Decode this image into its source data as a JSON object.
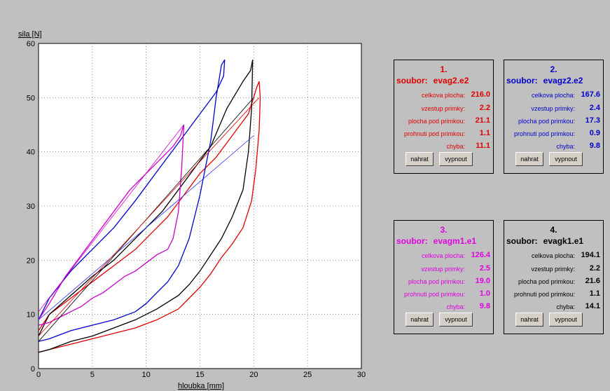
{
  "chart_data": {
    "type": "line",
    "title": "",
    "xlabel": "hloubka [mm]",
    "ylabel": "sila [N]",
    "xlim": [
      0,
      30
    ],
    "ylim": [
      0,
      60
    ],
    "xticks": [
      0,
      5,
      10,
      15,
      20,
      25,
      30
    ],
    "yticks": [
      0,
      10,
      20,
      30,
      40,
      50,
      60
    ],
    "grid": true,
    "series": [
      {
        "color": "#e00000",
        "x": [
          0,
          1,
          3,
          5,
          7,
          9,
          11,
          13,
          14,
          15,
          16,
          17,
          18,
          19,
          19.8,
          20.2,
          20.5,
          20.6,
          20.5,
          20.3,
          19.5,
          18,
          16.5,
          15,
          13.5,
          12,
          10.5,
          9,
          7,
          5,
          3,
          1,
          0
        ],
        "y": [
          3,
          3.5,
          4.5,
          5.5,
          6.5,
          7.5,
          9,
          11,
          13,
          15,
          17.5,
          20.5,
          23,
          26,
          31,
          37,
          44,
          50,
          53,
          52,
          47,
          43,
          39,
          36,
          32,
          28,
          25,
          22,
          19,
          16,
          13,
          10,
          7
        ]
      },
      {
        "color": "#000000",
        "x": [
          0,
          1,
          3,
          5,
          7,
          9,
          11,
          13,
          14,
          15,
          16,
          17,
          18,
          19,
          19.5,
          19.8,
          19.9,
          19.7,
          19,
          17.5,
          16,
          14.5,
          13,
          11.5,
          10,
          8.5,
          7,
          5,
          3,
          1,
          0
        ],
        "y": [
          3,
          3.5,
          5,
          6,
          7.5,
          9,
          11,
          13.5,
          15.5,
          18,
          21,
          24,
          28,
          33,
          40,
          48,
          57,
          55,
          53,
          48,
          41,
          37,
          33,
          29,
          26,
          23,
          20,
          17,
          13.5,
          10,
          6
        ]
      },
      {
        "color": "#0000cc",
        "x": [
          0,
          1,
          3,
          5,
          7,
          9,
          10,
          11,
          12,
          13,
          14,
          15,
          16,
          16.5,
          17,
          17.3,
          17.2,
          16.5,
          15,
          13.5,
          12,
          10.5,
          9,
          7,
          5,
          3,
          1,
          0
        ],
        "y": [
          5,
          5.5,
          7,
          8,
          9,
          10.5,
          12,
          14,
          16,
          19,
          24,
          32,
          42,
          50,
          56,
          57,
          54,
          51,
          47,
          43,
          39,
          35,
          31,
          26,
          22,
          18,
          13,
          9
        ]
      },
      {
        "color": "#cc00cc",
        "x": [
          0,
          1,
          2,
          3,
          4,
          5,
          6,
          7,
          8,
          9,
          10,
          11,
          12,
          12.5,
          13,
          13.3,
          13.5,
          13.2,
          12.5,
          11.5,
          10,
          8.5,
          7,
          5.5,
          4,
          2.5,
          1,
          0
        ],
        "y": [
          8,
          8.5,
          9.5,
          10.5,
          11.5,
          13,
          14,
          15.5,
          17,
          18,
          19.5,
          21,
          22,
          24,
          29,
          37,
          45,
          43,
          41,
          39,
          36,
          33,
          29,
          25,
          21,
          17,
          12,
          9
        ]
      },
      {
        "color": "#3030ff",
        "x": [
          0,
          20
        ],
        "y": [
          9,
          43
        ],
        "thin": true
      },
      {
        "color": "#cc00cc",
        "x": [
          0,
          13.5
        ],
        "y": [
          10.5,
          45
        ],
        "thin": true
      },
      {
        "color": "#000000",
        "x": [
          0,
          20
        ],
        "y": [
          5,
          50
        ],
        "thin": true
      },
      {
        "color": "#e00000",
        "x": [
          0,
          20.5
        ],
        "y": [
          6,
          50
        ],
        "thin": true
      }
    ]
  },
  "panels": [
    {
      "num": "1.",
      "color": "#e00000",
      "soubor_label": "soubor:",
      "file": "evag2.e2",
      "stats": [
        {
          "label": "celkova plocha:",
          "value": "216.0"
        },
        {
          "label": "vzestup primky:",
          "value": "2.2"
        },
        {
          "label": "plocha pod primkou:",
          "value": "21.1"
        },
        {
          "label": "prohnuti pod primkou:",
          "value": "1.1"
        },
        {
          "label": "chyba:",
          "value": "11.1"
        }
      ],
      "btn_nahrat": "nahrat",
      "btn_vypnout": "vypnout"
    },
    {
      "num": "2.",
      "color": "#0000cc",
      "soubor_label": "soubor:",
      "file": "evagz2.e2",
      "stats": [
        {
          "label": "celkova plocha:",
          "value": "167.6"
        },
        {
          "label": "vzestup primky:",
          "value": "2.4"
        },
        {
          "label": "plocha pod primkou:",
          "value": "17.3"
        },
        {
          "label": "prohnuti pod primkou:",
          "value": "0.9"
        },
        {
          "label": "chyba:",
          "value": "9.8"
        }
      ],
      "btn_nahrat": "nahrat",
      "btn_vypnout": "vypnout"
    },
    {
      "num": "3.",
      "color": "#e000e0",
      "soubor_label": "soubor:",
      "file": "evagm1.e1",
      "stats": [
        {
          "label": "celkova plocha:",
          "value": "126.4"
        },
        {
          "label": "vzestup primky:",
          "value": "2.5"
        },
        {
          "label": "plocha pod primkou:",
          "value": "19.0"
        },
        {
          "label": "prohnuti pod primkou:",
          "value": "1.0"
        },
        {
          "label": "chyba:",
          "value": "9.8"
        }
      ],
      "btn_nahrat": "nahrat",
      "btn_vypnout": "vypnout"
    },
    {
      "num": "4.",
      "color": "#000000",
      "soubor_label": "soubor:",
      "file": "evagk1.e1",
      "stats": [
        {
          "label": "celkova plocha:",
          "value": "194.1"
        },
        {
          "label": "vzestup primky:",
          "value": "2.2"
        },
        {
          "label": "plocha pod primkou:",
          "value": "21.6"
        },
        {
          "label": "prohnuti pod primkou:",
          "value": "1.1"
        },
        {
          "label": "chyba:",
          "value": "14.1"
        }
      ],
      "btn_nahrat": "nahrat",
      "btn_vypnout": "vypnout"
    }
  ]
}
